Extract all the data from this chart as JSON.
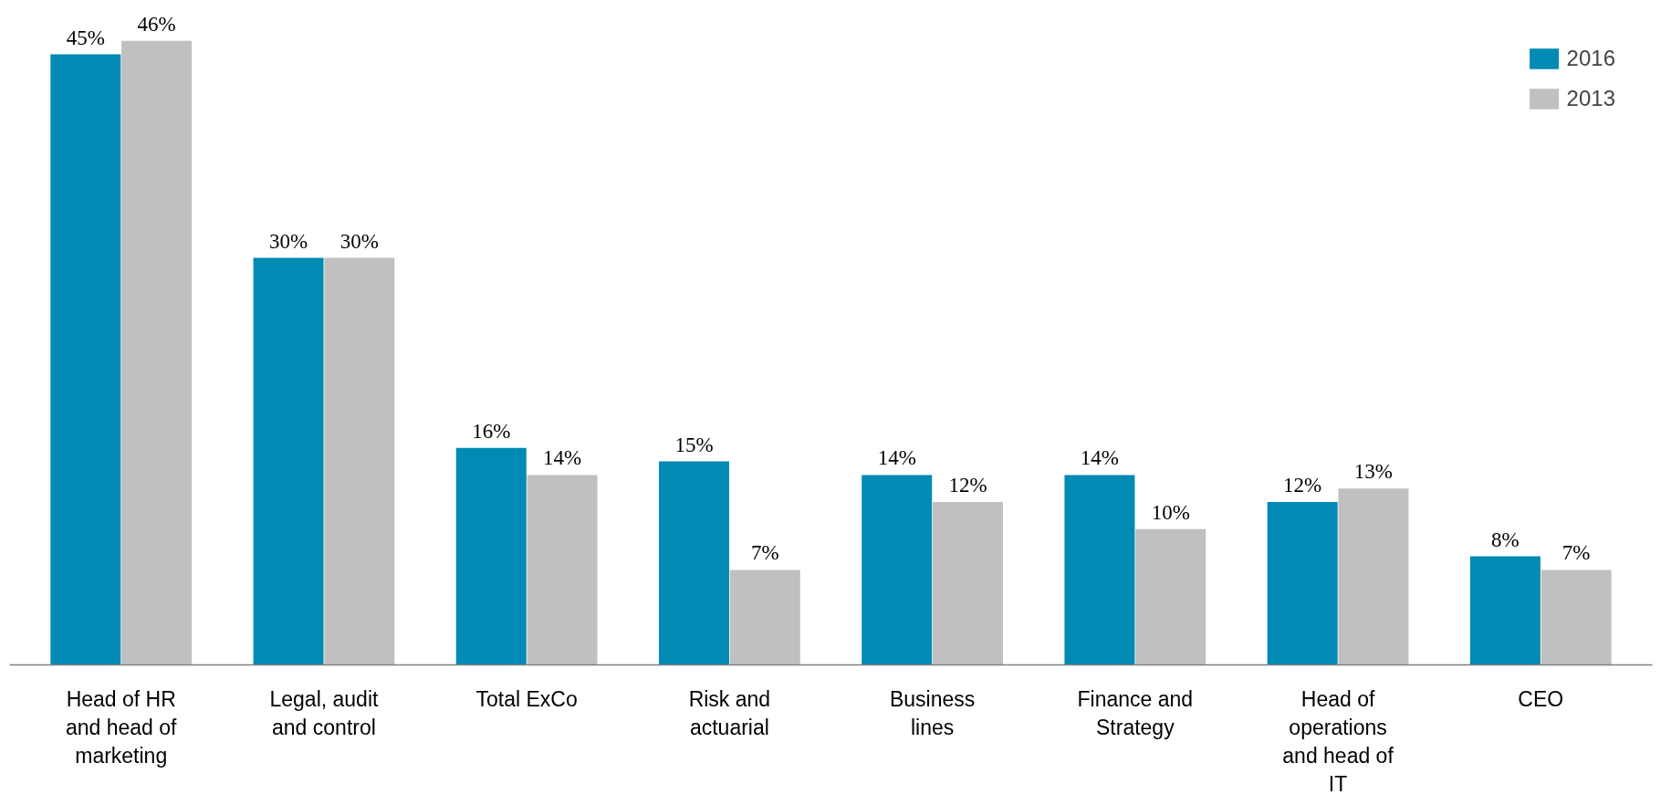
{
  "chart_data": {
    "type": "bar",
    "categories": [
      "Head of HR and head of marketing",
      "Legal, audit and control",
      "Total ExCo",
      "Risk and actuarial",
      "Business lines",
      "Finance and Strategy",
      "Head of operations and head of IT",
      "CEO"
    ],
    "series": [
      {
        "name": "2016",
        "color": "#008ab4",
        "values": [
          45,
          30,
          16,
          15,
          14,
          14,
          12,
          8
        ],
        "value_labels": [
          "45%",
          "30%",
          "16%",
          "15%",
          "14%",
          "14%",
          "12%",
          "8%"
        ]
      },
      {
        "name": "2013",
        "color": "#c0c0c0",
        "values": [
          46,
          30,
          14,
          7,
          12,
          10,
          13,
          7
        ],
        "value_labels": [
          "46%",
          "30%",
          "14%",
          "7%",
          "12%",
          "10%",
          "13%",
          "7%"
        ]
      }
    ],
    "legend": "top right",
    "grid": false
  }
}
